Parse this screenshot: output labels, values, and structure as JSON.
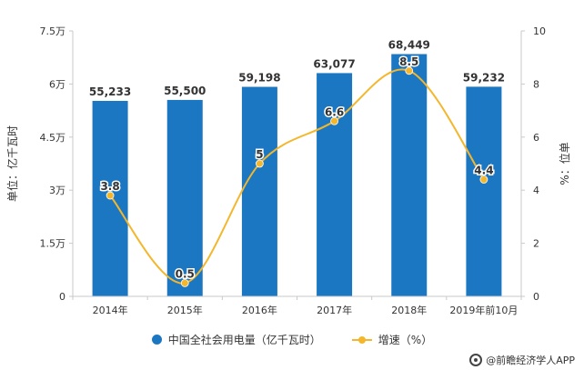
{
  "chart_data": {
    "type": "bar",
    "categories": [
      "2014年",
      "2015年",
      "2016年",
      "2017年",
      "2018年",
      "2019年前10月"
    ],
    "series": [
      {
        "name": "中国全社会用电量（亿千瓦时）",
        "kind": "bar",
        "axis": "left",
        "values": [
          55233,
          55500,
          59198,
          63077,
          68449,
          59232
        ],
        "labels": [
          "55,233",
          "55,500",
          "59,198",
          "63,077",
          "68,449",
          "59,232"
        ],
        "color": "#1c77c3"
      },
      {
        "name": "增速（%）",
        "kind": "line",
        "axis": "right",
        "values": [
          3.8,
          0.5,
          5,
          6.6,
          8.5,
          4.4
        ],
        "labels": [
          "3.8",
          "0.5",
          "5",
          "6.6",
          "8.5",
          "4.4"
        ],
        "color": "#f4b62a"
      }
    ],
    "ylabel_left": "单位：亿千瓦时",
    "ylabel_right": "%：位单",
    "ylim_left": [
      0,
      75000
    ],
    "ylim_right": [
      0,
      10
    ],
    "left_ticks": [
      {
        "value": 0,
        "label": "0"
      },
      {
        "value": 15000,
        "label": "1.5万"
      },
      {
        "value": 30000,
        "label": "3万"
      },
      {
        "value": 45000,
        "label": "4.5万"
      },
      {
        "value": 60000,
        "label": "6万"
      },
      {
        "value": 75000,
        "label": "7.5万"
      }
    ],
    "right_ticks": [
      {
        "value": 0,
        "label": "0"
      },
      {
        "value": 2,
        "label": "2"
      },
      {
        "value": 4,
        "label": "4"
      },
      {
        "value": 6,
        "label": "6"
      },
      {
        "value": 8,
        "label": "8"
      },
      {
        "value": 10,
        "label": "10"
      }
    ],
    "grid": false,
    "legend_position": "bottom"
  },
  "legend": {
    "bar_label": "中国全社会用电量（亿千瓦时）",
    "line_label": "增速（%）"
  },
  "source": {
    "label": "@前瞻经济学人APP"
  }
}
